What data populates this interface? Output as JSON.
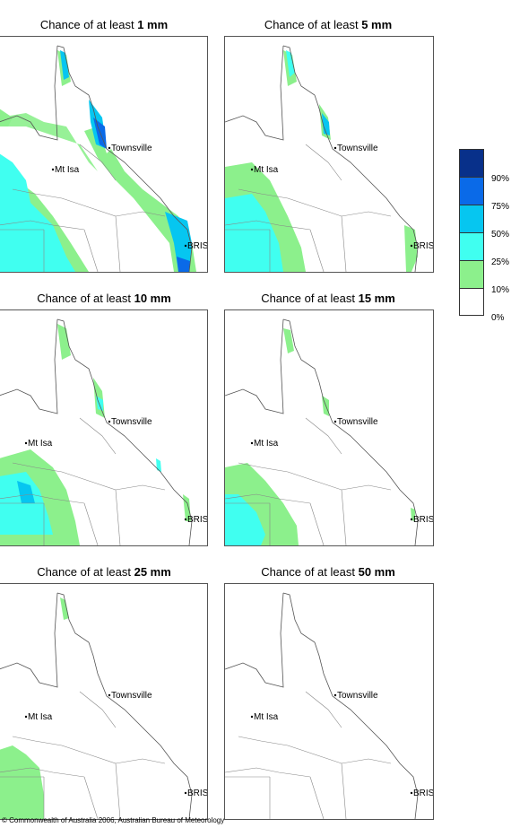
{
  "panels": [
    {
      "prefix": "Chance of at least ",
      "amount": "1 mm"
    },
    {
      "prefix": "Chance of at least ",
      "amount": "5 mm"
    },
    {
      "prefix": "Chance of at least ",
      "amount": "10 mm"
    },
    {
      "prefix": "Chance of at least ",
      "amount": "15 mm"
    },
    {
      "prefix": "Chance of at least ",
      "amount": "25 mm"
    },
    {
      "prefix": "Chance of at least ",
      "amount": "50 mm"
    }
  ],
  "cities": {
    "townsville": "Townsville",
    "mt_isa": "Mt Isa",
    "brisbane": "BRIS"
  },
  "legend": {
    "labels": [
      "90%",
      "75%",
      "50%",
      "25%",
      "10%",
      "0%"
    ],
    "colors": [
      "#08308a",
      "#0a6ae8",
      "#06c6f0",
      "#40fff0",
      "#8cf08c",
      "#ffffff"
    ]
  },
  "copyright": "© Commonwealth of Australia 2006, Australian Bureau of Meteorology"
}
